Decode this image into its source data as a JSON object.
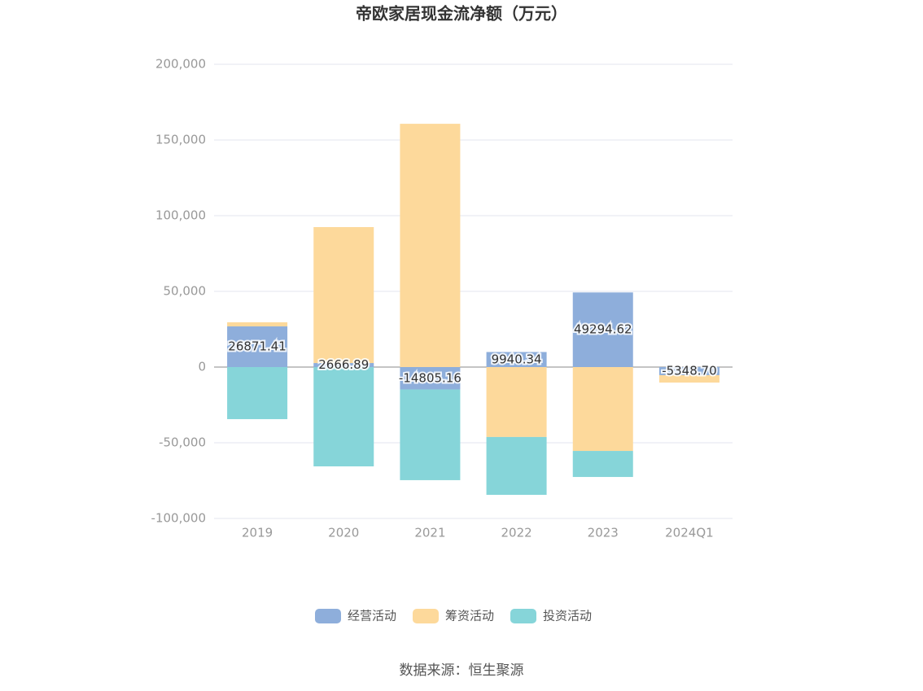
{
  "chart_data": {
    "type": "stacked_bar",
    "title": "帝欧家居现金流净额（万元）",
    "categories": [
      "2019",
      "2020",
      "2021",
      "2022",
      "2023",
      "2024Q1"
    ],
    "series": [
      {
        "name": "经营活动",
        "color": "#8eaedb",
        "values": [
          26871.41,
          2666.89,
          -14805.16,
          9940.34,
          49294.62,
          -5348.7
        ],
        "value_labels": [
          "26871.41",
          "2666.89",
          "-14805.16",
          "9940.34",
          "49294.62",
          "-5348.70"
        ]
      },
      {
        "name": "筹资活动",
        "color": "#fdd99b",
        "values": [
          2700,
          89800,
          160700,
          -46200,
          -55400,
          -4900
        ]
      },
      {
        "name": "投资活动",
        "color": "#86d5d9",
        "values": [
          -34400,
          -65600,
          -59900,
          -38200,
          -17200,
          0
        ]
      }
    ],
    "ylim": [
      -100000,
      200000
    ],
    "yticks": [
      {
        "value": -100000,
        "label": "-100,000"
      },
      {
        "value": -50000,
        "label": "-50,000"
      },
      0,
      {
        "value": 50000,
        "label": "50,000"
      },
      {
        "value": 100000,
        "label": "100,000"
      },
      {
        "value": 150000,
        "label": "150,000"
      },
      {
        "value": 200000,
        "label": "200,000"
      }
    ],
    "grid": true,
    "legend": "bottom",
    "source": "数据来源：恒生聚源"
  }
}
